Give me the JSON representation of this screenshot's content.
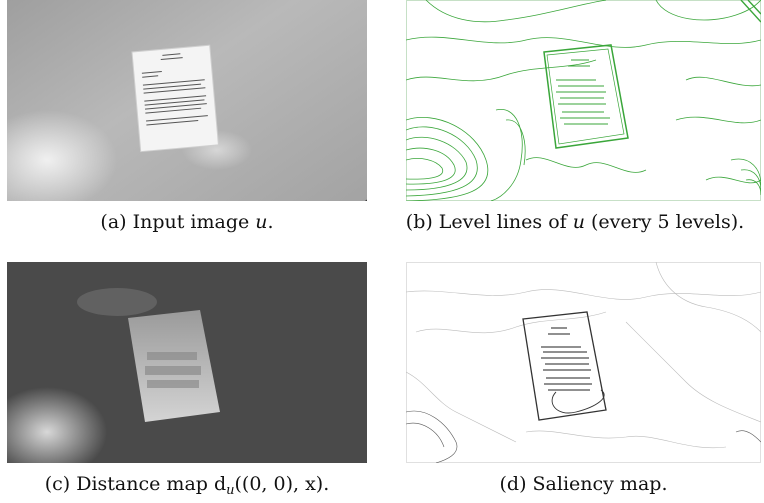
{
  "figure": {
    "panels": [
      {
        "id": "a",
        "caption_prefix": "(a) Input image ",
        "caption_math": "u",
        "caption_suffix": "."
      },
      {
        "id": "b",
        "caption_prefix": "(b) Level lines of ",
        "caption_math": "u",
        "caption_suffix": " (every 5 levels)."
      },
      {
        "id": "c",
        "caption_prefix": "(c) Distance map  d",
        "caption_math": "u",
        "caption_suffix": "((0, 0), x)."
      },
      {
        "id": "d",
        "caption_prefix": "(d) Saliency map.",
        "caption_math": "",
        "caption_suffix": ""
      }
    ],
    "colors": {
      "level_lines": "#3aa63a",
      "saliency_lines": "#333333",
      "background": "#ffffff"
    }
  }
}
